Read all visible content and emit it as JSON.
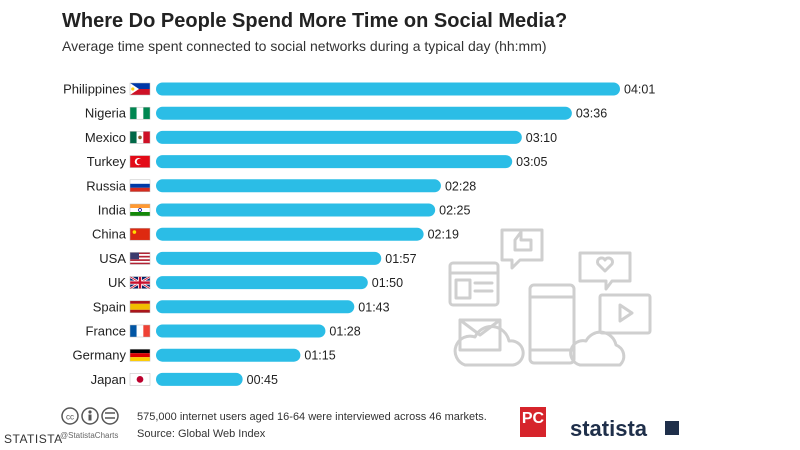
{
  "title": "Where Do People Spend More Time on Social Media?",
  "subtitle": "Average time spent connected to social networks during a typical day (hh:mm)",
  "colors": {
    "bar": "#2bbde6",
    "text": "#222222"
  },
  "chart_data": {
    "type": "bar",
    "orientation": "horizontal",
    "unit": "hh:mm",
    "categories": [
      "Philippines",
      "Nigeria",
      "Mexico",
      "Turkey",
      "Russia",
      "India",
      "China",
      "USA",
      "UK",
      "Spain",
      "France",
      "Germany",
      "Japan"
    ],
    "labels": [
      "04:01",
      "03:36",
      "03:10",
      "03:05",
      "02:28",
      "02:25",
      "02:19",
      "01:57",
      "01:50",
      "01:43",
      "01:28",
      "01:15",
      "00:45"
    ],
    "values": [
      241,
      216,
      190,
      185,
      148,
      145,
      139,
      117,
      110,
      103,
      88,
      75,
      45
    ],
    "flags": [
      "flag-philippines",
      "flag-nigeria",
      "flag-mexico",
      "flag-turkey",
      "flag-russia",
      "flag-india",
      "flag-china",
      "flag-usa",
      "flag-uk",
      "flag-spain",
      "flag-france",
      "flag-germany",
      "flag-japan"
    ],
    "legend": "none",
    "grid": false
  },
  "footer": {
    "note": "575,000 internet users aged 16-64 were interviewed across 46 markets.",
    "source": "Source: Global Web Index",
    "handle": "@StatistaCharts",
    "pc_logo": "PC",
    "brand": "statista"
  },
  "watermark": "STATISTA"
}
